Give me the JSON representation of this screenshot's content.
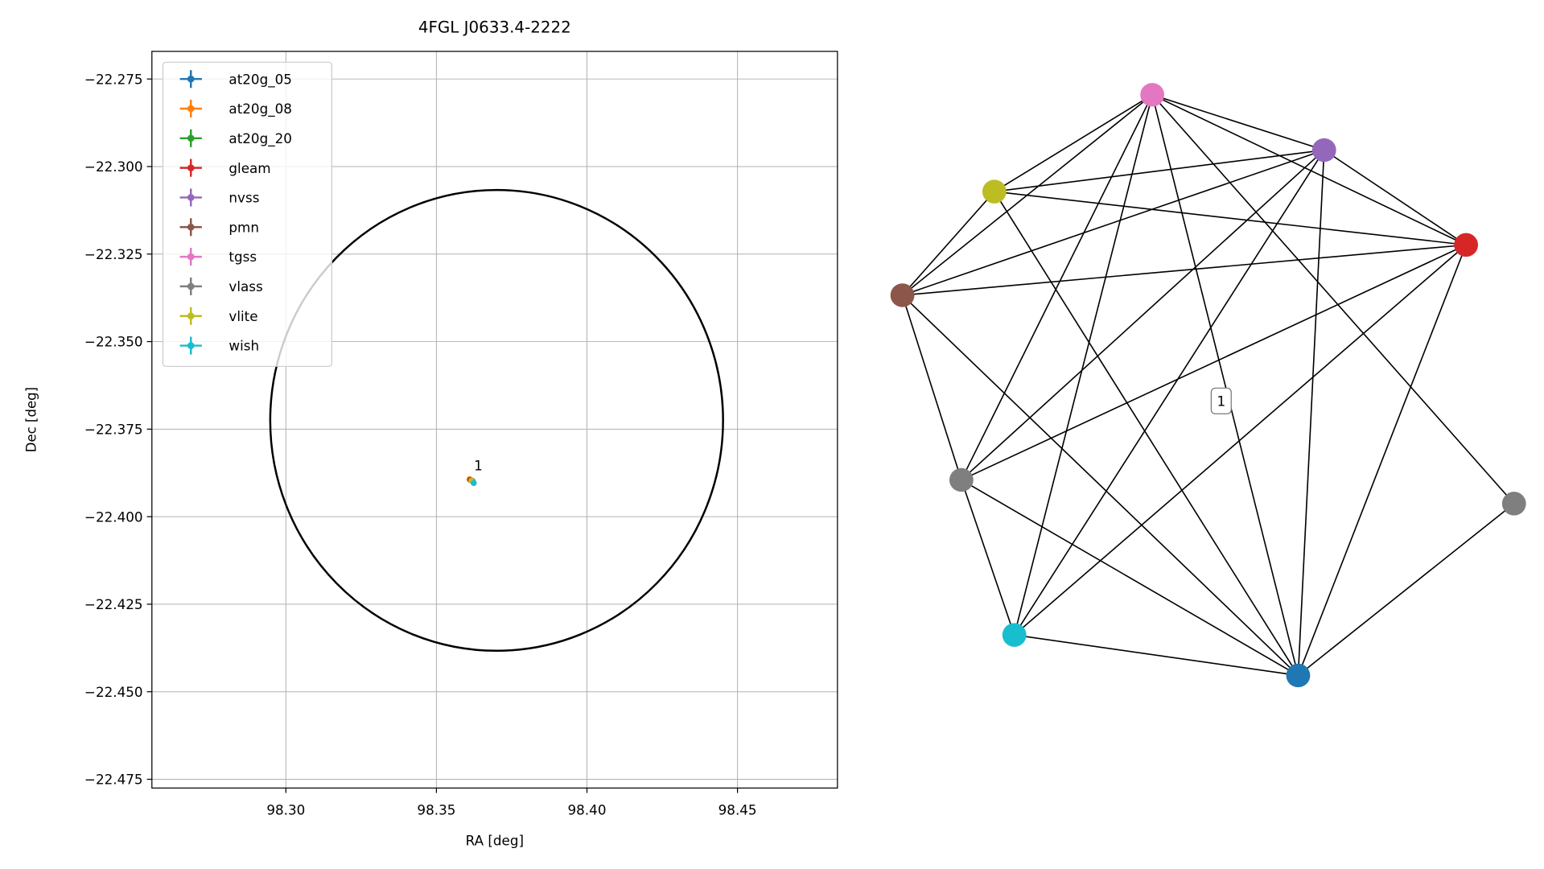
{
  "chart_data": {
    "type": "scatter",
    "title": "4FGL J0633.4-2222",
    "x_label": "RA [deg]",
    "y_label": "Dec [deg]",
    "xlim": [
      98.2555,
      98.4832
    ],
    "ylim": [
      -22.4775,
      -22.2671
    ],
    "xticks": [
      {
        "value": 98.3,
        "label": "98.30"
      },
      {
        "value": 98.35,
        "label": "98.35"
      },
      {
        "value": 98.4,
        "label": "98.40"
      },
      {
        "value": 98.45,
        "label": "98.45"
      }
    ],
    "yticks": [
      {
        "value": -22.275,
        "label": "−22.275"
      },
      {
        "value": -22.3,
        "label": "−22.300"
      },
      {
        "value": -22.325,
        "label": "−22.325"
      },
      {
        "value": -22.35,
        "label": "−22.350"
      },
      {
        "value": -22.375,
        "label": "−22.375"
      },
      {
        "value": -22.4,
        "label": "−22.400"
      },
      {
        "value": -22.425,
        "label": "−22.425"
      },
      {
        "value": -22.45,
        "label": "−22.450"
      },
      {
        "value": -22.475,
        "label": "−22.475"
      }
    ],
    "grid": true,
    "legend": "upper left",
    "series": [
      {
        "name": "at20g_05",
        "color": "#1f77b4",
        "x": [
          98.3622
        ],
        "y": [
          -22.3901
        ]
      },
      {
        "name": "at20g_08",
        "color": "#ff7f0e",
        "x": [
          98.361
        ],
        "y": [
          -22.3893
        ]
      },
      {
        "name": "at20g_20",
        "color": "#2ca02c",
        "x": [
          98.362
        ],
        "y": [
          -22.3898
        ]
      },
      {
        "name": "gleam",
        "color": "#d62728",
        "x": [
          98.3612
        ],
        "y": [
          -22.3895
        ]
      },
      {
        "name": "nvss",
        "color": "#9467bd",
        "x": [
          98.3618
        ],
        "y": [
          -22.3897
        ]
      },
      {
        "name": "pmn",
        "color": "#8c564b",
        "x": [
          98.3615
        ],
        "y": [
          -22.3896
        ]
      },
      {
        "name": "tgss",
        "color": "#e377c2",
        "x": [
          98.3619
        ],
        "y": [
          -22.3899
        ]
      },
      {
        "name": "vlass",
        "color": "#7f7f7f",
        "x": [
          98.3621
        ],
        "y": [
          -22.39
        ]
      },
      {
        "name": "vlite",
        "color": "#bcbd22",
        "x": [
          98.3616
        ],
        "y": [
          -22.3897
        ]
      },
      {
        "name": "wish",
        "color": "#17becf",
        "x": [
          98.3624
        ],
        "y": [
          -22.3904
        ]
      }
    ],
    "region": {
      "center_x": 98.37,
      "center_y": -22.3725,
      "radius_x": 0.0752,
      "radius_y": 0.0658
    },
    "annotation": {
      "text": "1",
      "x": 98.3625,
      "y": -22.3868
    }
  },
  "graph": {
    "label": "1"
  }
}
